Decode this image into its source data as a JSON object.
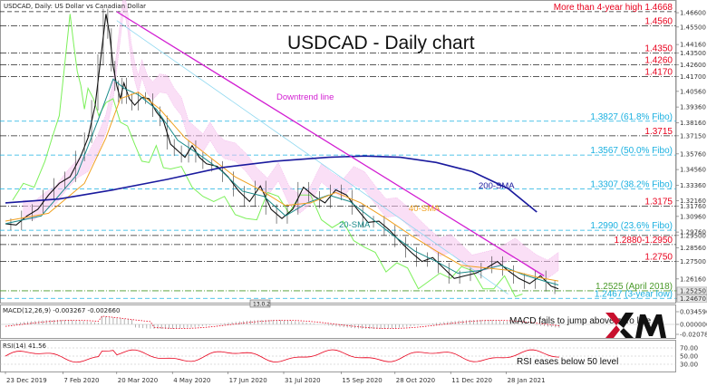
{
  "chart_data": {
    "type": "line",
    "symbol": "USDCAD, Daily:",
    "symbol_desc": "US Dollar vs Canadian Dollar",
    "title": "USDCAD - Daily chart",
    "price_axis": {
      "min": 1.2448,
      "max": 1.4695,
      "ticks": [
        "1.46600",
        "1.45500",
        "1.44160",
        "1.43500",
        "1.42600",
        "1.41700",
        "1.40560",
        "1.39360",
        "1.38160",
        "1.37150",
        "1.35760",
        "1.34560",
        "1.33360",
        "1.32160",
        "1.31760",
        "1.30960",
        "1.29760",
        "1.29500",
        "1.28560",
        "1.27500",
        "1.26160",
        "1.25250",
        "1.24670"
      ],
      "tick_values": [
        1.466,
        1.455,
        1.4416,
        1.435,
        1.426,
        1.417,
        1.4056,
        1.3936,
        1.3816,
        1.3715,
        1.3576,
        1.3456,
        1.3336,
        1.3216,
        1.3176,
        1.3096,
        1.2976,
        1.295,
        1.2856,
        1.275,
        1.2616,
        1.2525,
        1.2467
      ]
    },
    "date_axis": {
      "labels": [
        "23 Dec 2019",
        "7 Feb 2020",
        "20 Mar 2020",
        "4 May 2020",
        "17 Jun 2020",
        "31 Jul 2020",
        "15 Sep 2020",
        "28 Oct 2020",
        "11 Dec 2020",
        "28 Jan 2021"
      ],
      "positions": [
        0,
        32,
        62,
        93,
        124,
        155,
        187,
        217,
        248,
        279
      ],
      "range": [
        0,
        310
      ]
    },
    "levels": [
      {
        "label": "More than 4-year high 1.4668",
        "value": 1.4668,
        "color": "#e8001c",
        "style": "dash"
      },
      {
        "label": "1.4560",
        "value": 1.456,
        "color": "#e8001c",
        "style": "dashdot"
      },
      {
        "label": "1.4350",
        "value": 1.435,
        "color": "#e8001c",
        "style": "dashdot"
      },
      {
        "label": "1.4260",
        "value": 1.426,
        "color": "#e8001c",
        "style": "dashdot"
      },
      {
        "label": "1.4170",
        "value": 1.417,
        "color": "#e8001c",
        "style": "dashdot"
      },
      {
        "label": "1.3827 (61.8% Fibo)",
        "value": 1.3827,
        "color": "#1ab0e0",
        "style": "dash"
      },
      {
        "label": "1.3715",
        "value": 1.3715,
        "color": "#e8001c",
        "style": "dashdot"
      },
      {
        "label": "1.3567 (50.0% Fibo)",
        "value": 1.3567,
        "color": "#1ab0e0",
        "style": "dash"
      },
      {
        "label": "1.3307 (38.2% Fibo)",
        "value": 1.3307,
        "color": "#1ab0e0",
        "style": "dash"
      },
      {
        "label": "1.3175",
        "value": 1.3175,
        "color": "#e8001c",
        "style": "dashdot"
      },
      {
        "label": "1.2990 (23.6% Fibo)",
        "value": 1.299,
        "color": "#1ab0e0",
        "style": "dash"
      },
      {
        "label": "1.2880-1.2950",
        "value": 1.288,
        "color": "#e8001c",
        "style": "dashdot"
      },
      {
        "label": "1.2750",
        "value": 1.275,
        "color": "#e8001c",
        "style": "dashdot"
      },
      {
        "label": "1.2525 (April 2018)",
        "value": 1.2525,
        "color": "#4a9a2a",
        "style": "dashdot"
      },
      {
        "label": "1.2467 (3-year low)",
        "value": 1.2467,
        "color": "#1ab0e0",
        "style": "dash"
      }
    ],
    "extra_level_value": 1.295,
    "annotations": {
      "downtrend": "Downtrend line",
      "sma200": "200-SMA",
      "sma40": "40-SMA",
      "sma20": "20-SMA"
    },
    "series": [
      {
        "name": "Price",
        "x": [
          0,
          6,
          12,
          18,
          24,
          30,
          36,
          42,
          46,
          50,
          53,
          56,
          58,
          60,
          62,
          64,
          66,
          69,
          72,
          76,
          80,
          84,
          88,
          92,
          96,
          100,
          104,
          108,
          112,
          118,
          124,
          130,
          136,
          142,
          148,
          154,
          160,
          166,
          172,
          178,
          184,
          190,
          196,
          202,
          208,
          214,
          220,
          226,
          232,
          238,
          244,
          250,
          256,
          262,
          268,
          274,
          280,
          286,
          292,
          298,
          304,
          308
        ],
        "y": [
          1.304,
          1.303,
          1.31,
          1.315,
          1.326,
          1.335,
          1.34,
          1.356,
          1.37,
          1.395,
          1.43,
          1.465,
          1.45,
          1.425,
          1.41,
          1.4,
          1.412,
          1.4,
          1.395,
          1.401,
          1.4,
          1.39,
          1.383,
          1.365,
          1.36,
          1.355,
          1.364,
          1.355,
          1.35,
          1.348,
          1.34,
          1.329,
          1.321,
          1.333,
          1.315,
          1.308,
          1.315,
          1.332,
          1.325,
          1.32,
          1.33,
          1.326,
          1.315,
          1.305,
          1.306,
          1.299,
          1.29,
          1.282,
          1.275,
          1.278,
          1.27,
          1.262,
          1.264,
          1.266,
          1.27,
          1.275,
          1.268,
          1.262,
          1.258,
          1.264,
          1.256,
          1.254
        ]
      },
      {
        "name": "20-SMA",
        "x": [
          0,
          20,
          40,
          52,
          60,
          66,
          74,
          84,
          96,
          108,
          120,
          132,
          144,
          156,
          168,
          180,
          192,
          204,
          216,
          228,
          240,
          252,
          264,
          276,
          288,
          300,
          308
        ],
        "y": [
          1.304,
          1.31,
          1.342,
          1.385,
          1.415,
          1.408,
          1.403,
          1.392,
          1.368,
          1.357,
          1.345,
          1.329,
          1.325,
          1.31,
          1.32,
          1.326,
          1.321,
          1.308,
          1.295,
          1.283,
          1.275,
          1.266,
          1.268,
          1.272,
          1.265,
          1.26,
          1.257
        ]
      },
      {
        "name": "40-SMA",
        "x": [
          0,
          24,
          44,
          56,
          64,
          74,
          86,
          100,
          114,
          128,
          142,
          156,
          170,
          184,
          198,
          212,
          226,
          240,
          254,
          268,
          282,
          296,
          308
        ],
        "y": [
          1.306,
          1.312,
          1.335,
          1.37,
          1.4,
          1.405,
          1.392,
          1.37,
          1.355,
          1.34,
          1.33,
          1.318,
          1.32,
          1.328,
          1.32,
          1.308,
          1.295,
          1.283,
          1.272,
          1.27,
          1.268,
          1.263,
          1.26
        ]
      },
      {
        "name": "200-SMA",
        "x": [
          0,
          30,
          60,
          90,
          120,
          150,
          180,
          200,
          220,
          240,
          260,
          280,
          296
        ],
        "y": [
          1.32,
          1.323,
          1.33,
          1.338,
          1.347,
          1.352,
          1.355,
          1.356,
          1.355,
          1.351,
          1.344,
          1.331,
          1.313
        ]
      },
      {
        "name": "Downtrend line",
        "x": [
          62,
          300
        ],
        "y": [
          1.4668,
          1.264
        ]
      }
    ],
    "macd": {
      "label": "MACD(12,26,9) -0.003267 -0.002660",
      "ticks": [
        "0.034596",
        "0.000000",
        "-0.020785"
      ],
      "annotation": "MACD fails to jump above zero line"
    },
    "rsi": {
      "label": "RSI(14) 41.56",
      "ticks": [
        "70.00",
        "50.00",
        "30.00"
      ],
      "annotation": "RSI eases below 50 level"
    },
    "cursor_box": "13.0.2",
    "colors": {
      "magenta": "#d21ed2",
      "sma200": "#1a1a9e",
      "sma40": "#f0a020",
      "sma20": "#1a8a8a",
      "green": "#7cf05a",
      "cyan": "#1ab0e0",
      "red": "#e8001c",
      "olive": "#4a9a2a"
    }
  },
  "brand": {
    "name": "XM"
  }
}
